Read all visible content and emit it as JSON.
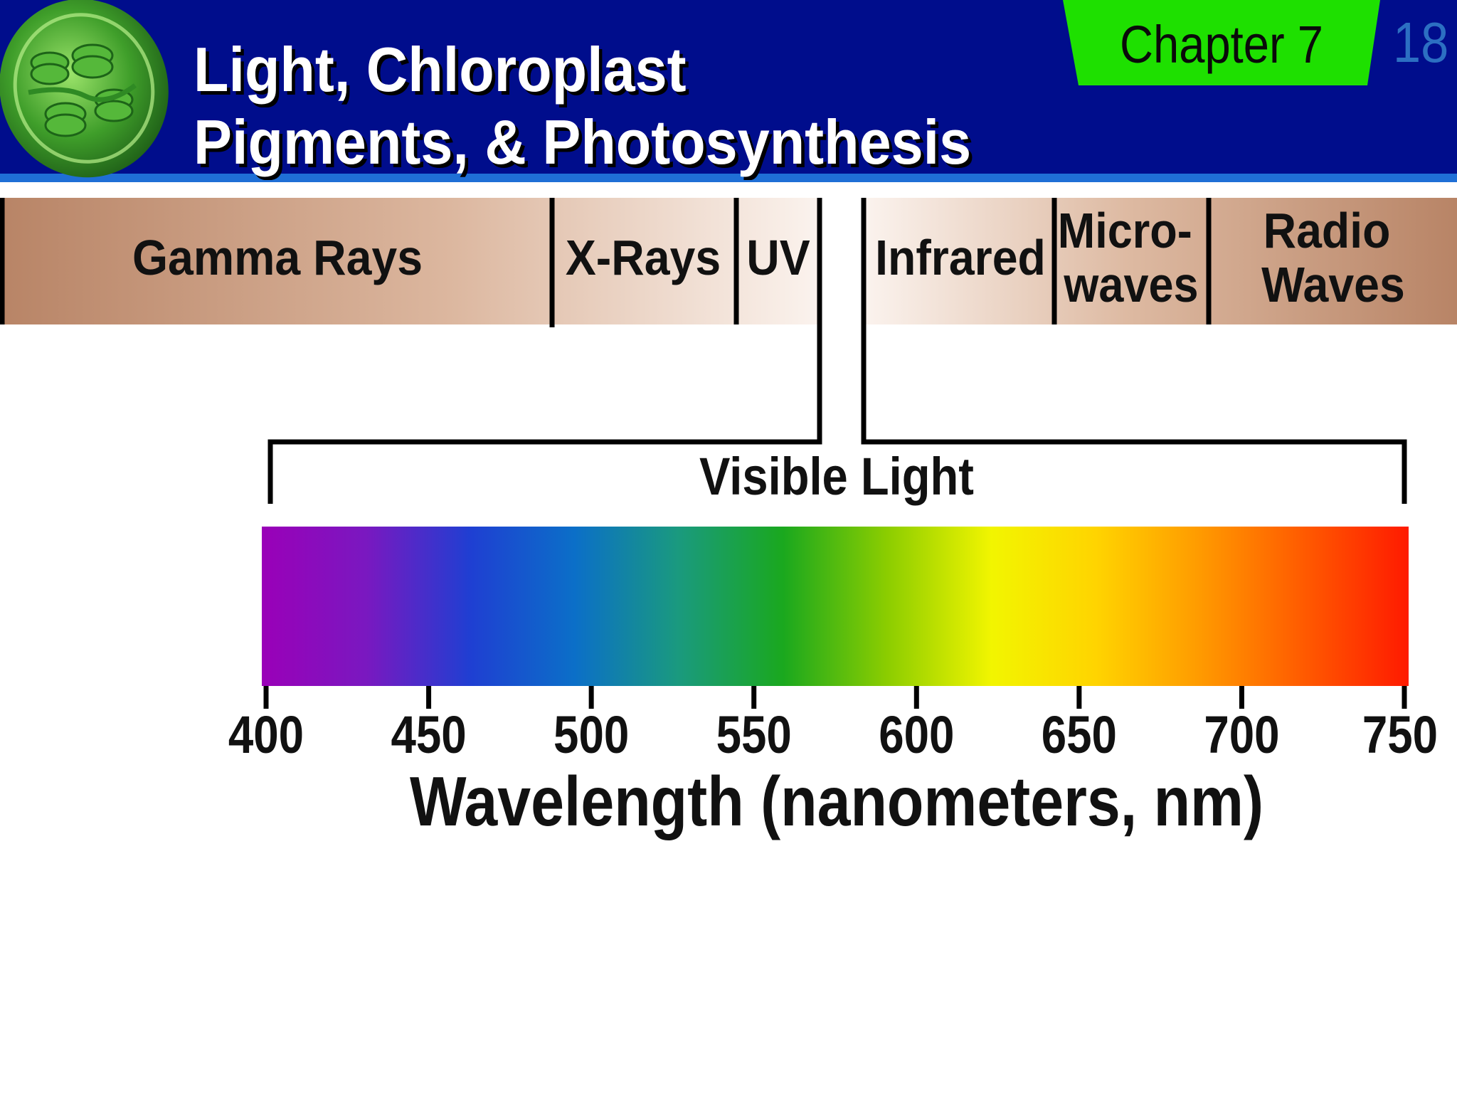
{
  "header": {
    "title_line1": "Light, Chloroplast",
    "title_line2": "Pigments, & Photosynthesis",
    "chapter": "Chapter 7",
    "slide_number": "18",
    "logo_icon": "chloroplast-icon",
    "colors": {
      "background": "#000d8c",
      "chapter_tab": "#1ee000",
      "slide_number": "#2c6fc2"
    }
  },
  "spectrum_bands": [
    {
      "label_lines": [
        "Gamma Rays"
      ]
    },
    {
      "label_lines": [
        "X-Rays"
      ]
    },
    {
      "label_lines": [
        "UV"
      ]
    },
    {
      "label_lines": [
        "Infrared"
      ]
    },
    {
      "label_lines": [
        "Micro-",
        "waves"
      ]
    },
    {
      "label_lines": [
        "Radio",
        "Waves"
      ]
    }
  ],
  "visible_light": {
    "label": "Visible Light",
    "ticks": [
      "400",
      "450",
      "500",
      "550",
      "600",
      "650",
      "700",
      "750"
    ],
    "axis_label": "Wavelength (nanometers, nm)",
    "range_nm": [
      400,
      750
    ],
    "gradient_colors": [
      "#9a00b8",
      "#7a18c0",
      "#1f3fd2",
      "#0b6fc8",
      "#1a9a7e",
      "#1aa81e",
      "#8ccd00",
      "#f2f500",
      "#ffd400",
      "#ff9a00",
      "#ff5a00",
      "#ff1a00"
    ]
  }
}
